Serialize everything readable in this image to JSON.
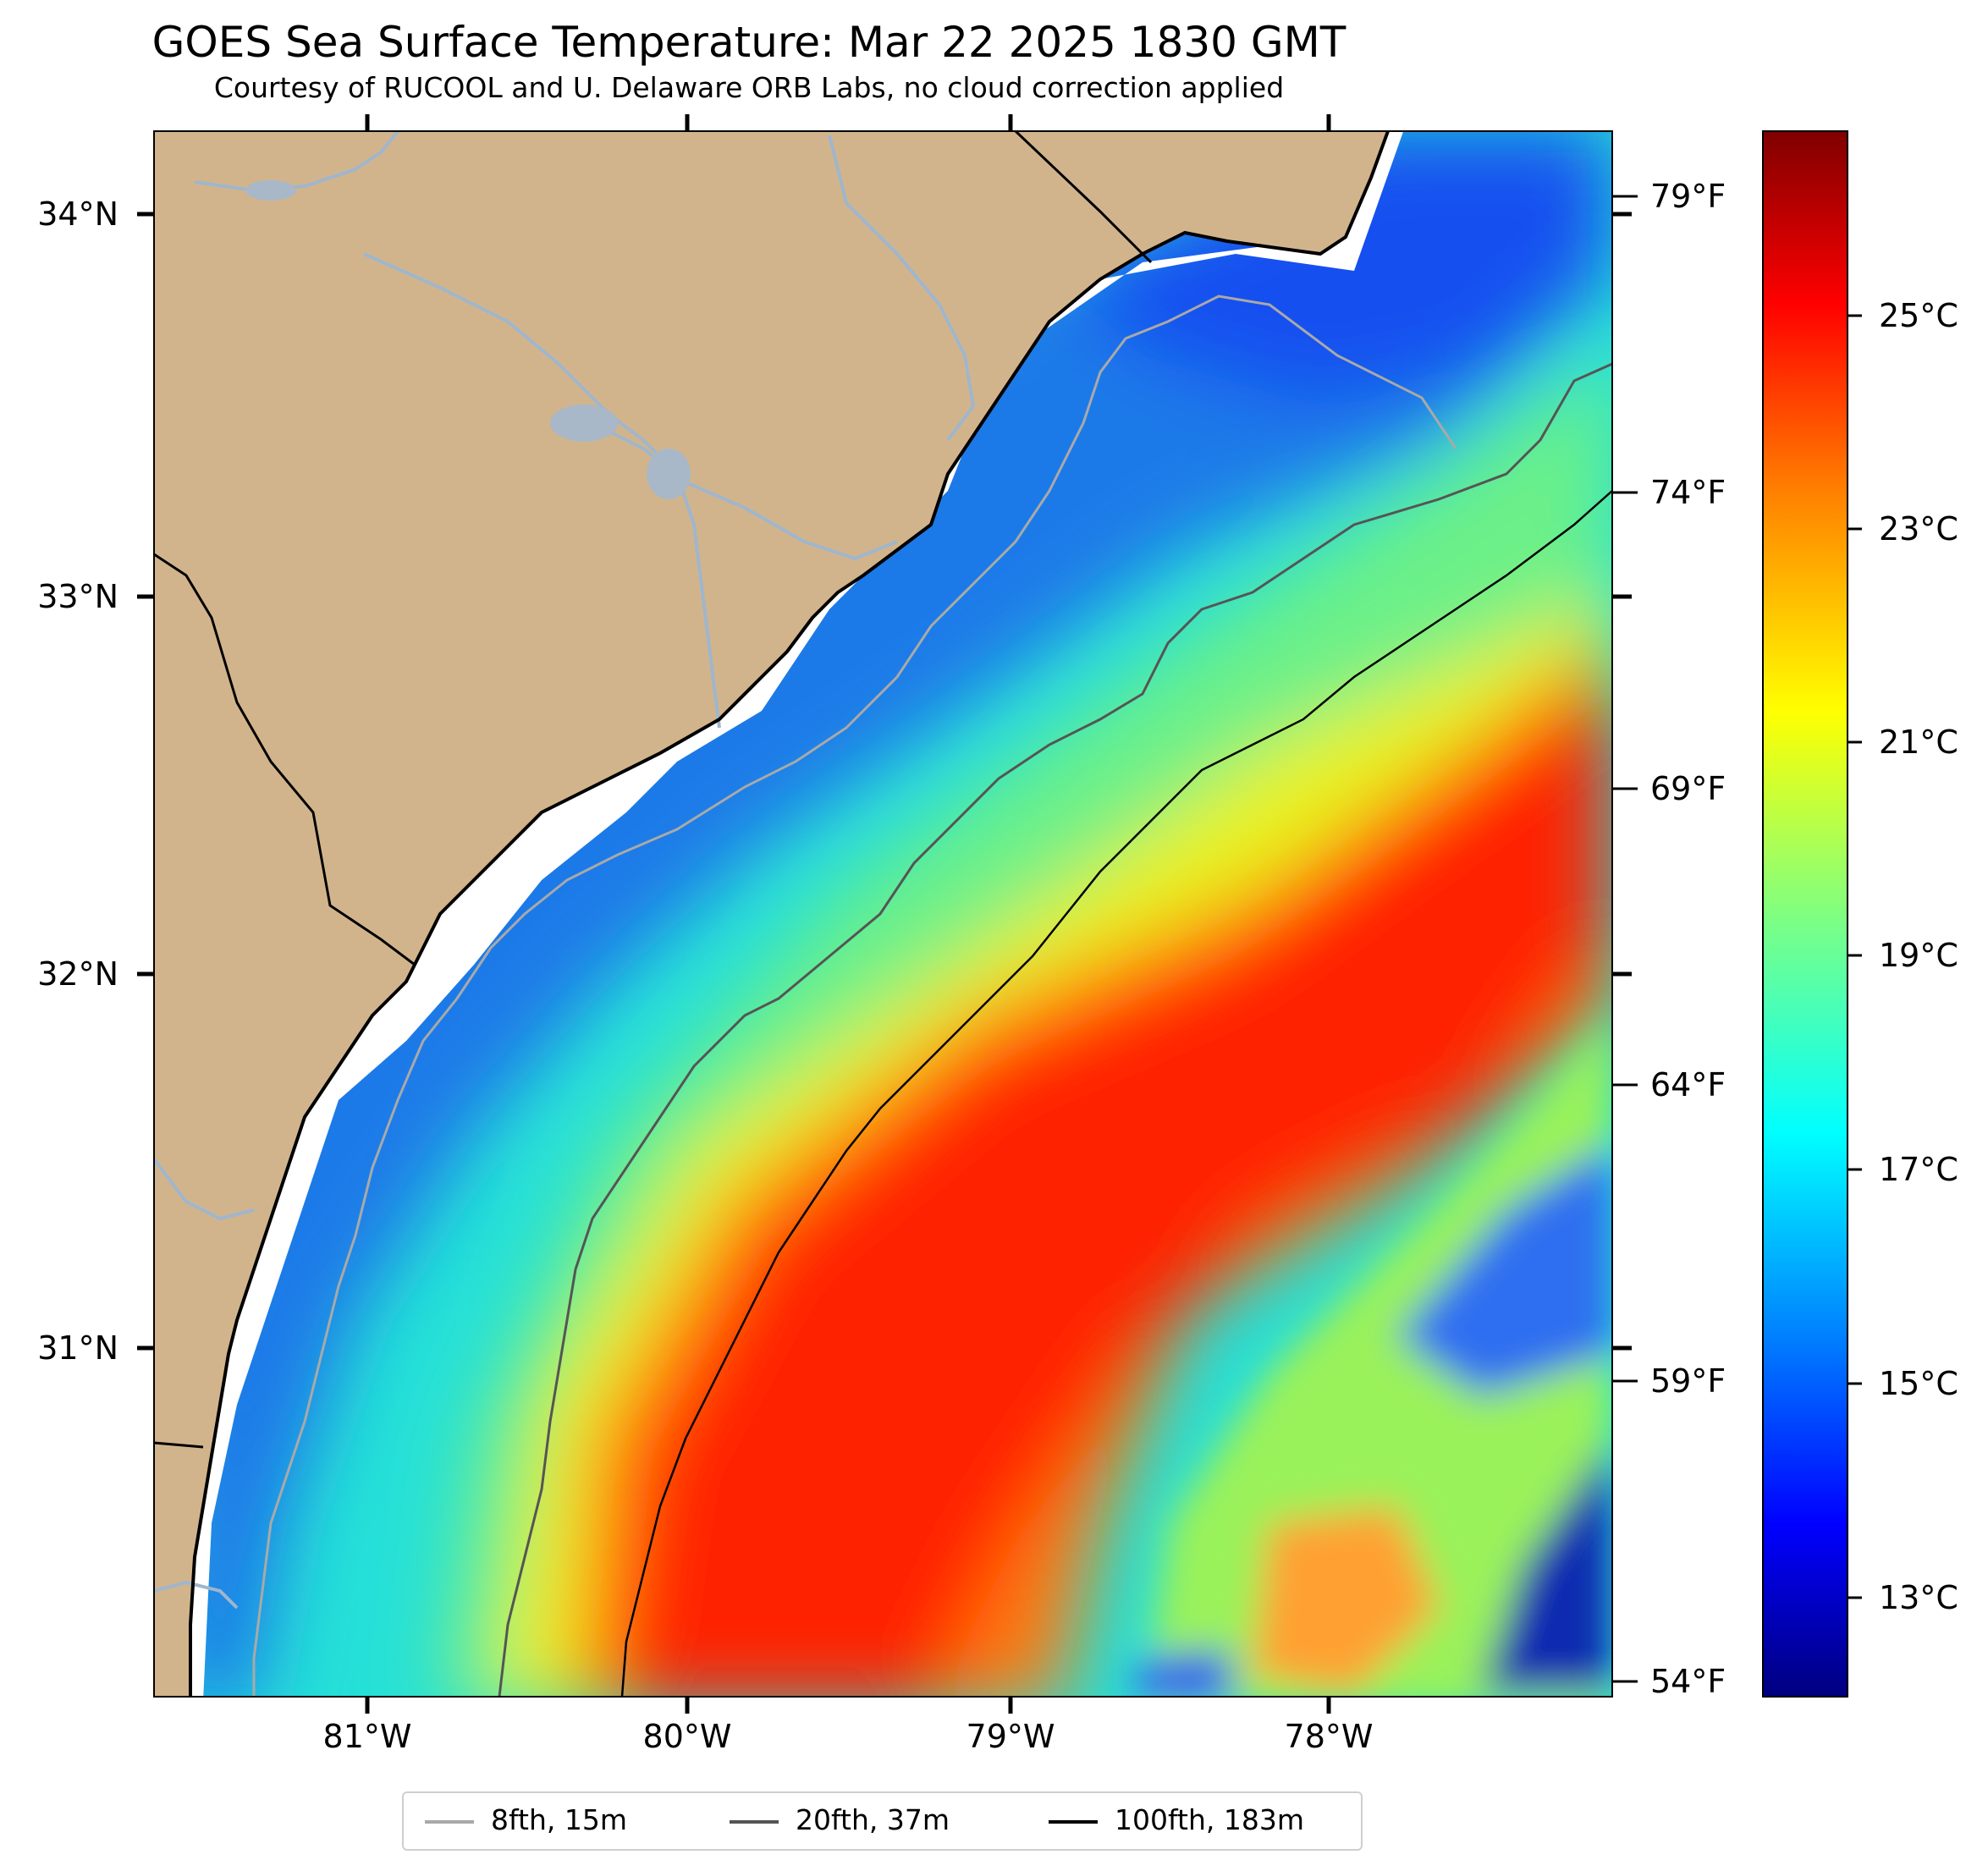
{
  "title": "GOES Sea Surface Temperature: Mar 22 2025 1830 GMT",
  "subtitle": "Courtesy of RUCOOL and U. Delaware ORB Labs, no cloud correction applied",
  "axes": {
    "latitude_labels": [
      "34°N",
      "33°N",
      "32°N",
      "31°N"
    ],
    "longitude_labels": [
      "81°W",
      "80°W",
      "79°W",
      "78°W"
    ],
    "fahrenheit_labels": [
      "79°F",
      "74°F",
      "69°F",
      "64°F",
      "59°F",
      "54°F"
    ]
  },
  "colorbar": {
    "labels": [
      "25°C",
      "23°C",
      "21°C",
      "19°C",
      "17°C",
      "15°C",
      "13°C"
    ],
    "colormap": "jet",
    "colors": [
      "#7f0000",
      "#ff0000",
      "#ff8000",
      "#ffff00",
      "#80ff80",
      "#00ffff",
      "#0080ff",
      "#0000ff",
      "#00007f"
    ]
  },
  "legend": {
    "items": [
      {
        "label": "8fth, 15m",
        "color": "#a9a9a9"
      },
      {
        "label": "20fth, 37m",
        "color": "#555555"
      },
      {
        "label": "100fth, 183m",
        "color": "#000000"
      }
    ]
  },
  "colors": {
    "land": "#d2b48c",
    "coast": "#000000",
    "river": "#9fb6cd",
    "no_data": "#ffffff"
  }
}
